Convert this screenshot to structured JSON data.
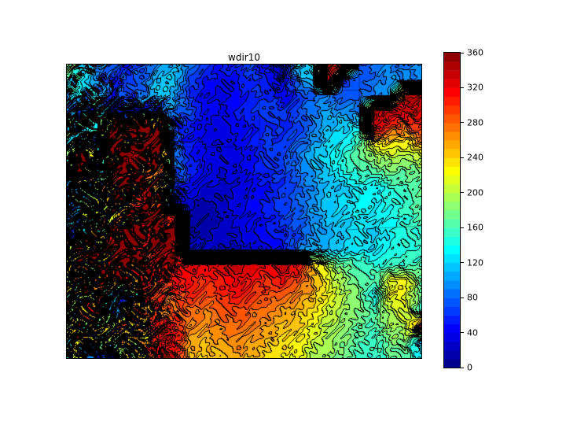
{
  "title": "wdir10",
  "colorbar": {
    "min": 0,
    "max": 360,
    "ticks": [
      0,
      40,
      80,
      120,
      160,
      200,
      240,
      280,
      320,
      360
    ],
    "n_bands": 36,
    "colormap": "jet"
  },
  "chart_data": {
    "type": "heatmap",
    "style": "filled-contour",
    "title": "wdir10",
    "variable": "wdir10",
    "units_range": [
      0,
      360
    ],
    "contour_interval": 10,
    "colormap": "jet",
    "legend_position": "right-colorbar",
    "grid_cols": 24,
    "grid_rows": 20,
    "grid": [
      [
        170,
        140,
        90,
        70,
        60,
        70,
        90,
        115,
        85,
        60,
        50,
        55,
        65,
        40,
        10,
        120,
        130,
        350,
        330,
        70,
        80,
        90,
        85,
        95
      ],
      [
        150,
        120,
        95,
        55,
        60,
        80,
        120,
        110,
        70,
        50,
        40,
        50,
        60,
        50,
        30,
        90,
        110,
        340,
        60,
        75,
        85,
        95,
        90,
        100
      ],
      [
        130,
        110,
        140,
        60,
        70,
        90,
        120,
        100,
        60,
        40,
        35,
        45,
        55,
        60,
        45,
        60,
        80,
        90,
        70,
        80,
        90,
        100,
        330,
        350
      ],
      [
        120,
        100,
        90,
        70,
        50,
        60,
        80,
        90,
        70,
        50,
        40,
        50,
        60,
        70,
        60,
        70,
        90,
        100,
        95,
        90,
        330,
        350,
        340,
        330
      ],
      [
        130,
        150,
        120,
        340,
        320,
        330,
        340,
        60,
        50,
        40,
        35,
        40,
        50,
        60,
        55,
        65,
        85,
        110,
        120,
        130,
        350,
        300,
        280,
        300
      ],
      [
        140,
        120,
        130,
        320,
        300,
        330,
        340,
        70,
        50,
        35,
        30,
        40,
        50,
        65,
        60,
        75,
        95,
        120,
        130,
        160,
        230,
        240,
        230,
        260
      ],
      [
        150,
        340,
        120,
        300,
        320,
        340,
        320,
        80,
        55,
        40,
        30,
        35,
        45,
        60,
        70,
        85,
        110,
        130,
        150,
        170,
        190,
        200,
        190,
        210
      ],
      [
        120,
        330,
        140,
        310,
        330,
        300,
        310,
        90,
        60,
        40,
        30,
        35,
        45,
        55,
        65,
        80,
        100,
        120,
        140,
        155,
        165,
        175,
        170,
        180
      ],
      [
        110,
        150,
        170,
        320,
        300,
        320,
        290,
        60,
        45,
        30,
        25,
        30,
        40,
        50,
        60,
        75,
        95,
        115,
        110,
        140,
        130,
        150,
        160,
        170
      ],
      [
        80,
        190,
        200,
        260,
        290,
        310,
        330,
        30,
        20,
        15,
        25,
        35,
        45,
        55,
        65,
        80,
        100,
        115,
        125,
        135,
        130,
        145,
        155,
        165
      ],
      [
        70,
        200,
        190,
        230,
        280,
        300,
        320,
        340,
        10,
        10,
        20,
        30,
        40,
        50,
        60,
        75,
        95,
        110,
        120,
        130,
        125,
        140,
        150,
        160
      ],
      [
        60,
        90,
        200,
        310,
        330,
        350,
        330,
        350,
        10,
        15,
        25,
        30,
        40,
        45,
        55,
        70,
        90,
        105,
        115,
        125,
        120,
        135,
        145,
        155
      ],
      [
        250,
        280,
        300,
        320,
        340,
        330,
        340,
        350,
        30,
        25,
        20,
        15,
        30,
        35,
        50,
        80,
        110,
        115,
        120,
        130,
        125,
        140,
        150,
        155
      ],
      [
        240,
        260,
        290,
        310,
        330,
        320,
        330,
        340,
        330,
        320,
        330,
        340,
        330,
        320,
        340,
        320,
        250,
        200,
        170,
        160,
        150,
        150,
        155,
        160
      ],
      [
        230,
        250,
        270,
        300,
        310,
        300,
        310,
        320,
        310,
        300,
        310,
        320,
        310,
        300,
        310,
        290,
        260,
        220,
        190,
        170,
        160,
        220,
        230,
        170
      ],
      [
        220,
        240,
        260,
        60,
        70,
        290,
        300,
        290,
        300,
        290,
        300,
        310,
        300,
        290,
        280,
        270,
        250,
        220,
        200,
        180,
        130,
        230,
        220,
        165
      ],
      [
        210,
        230,
        250,
        70,
        240,
        270,
        280,
        270,
        280,
        270,
        280,
        290,
        280,
        270,
        260,
        250,
        230,
        210,
        190,
        175,
        165,
        200,
        210,
        160
      ],
      [
        200,
        220,
        240,
        230,
        250,
        260,
        320,
        310,
        270,
        260,
        270,
        280,
        270,
        260,
        250,
        240,
        220,
        200,
        185,
        170,
        160,
        190,
        200,
        300
      ],
      [
        190,
        210,
        220,
        220,
        240,
        250,
        330,
        320,
        260,
        250,
        260,
        270,
        260,
        250,
        240,
        230,
        210,
        195,
        180,
        165,
        155,
        175,
        185,
        110
      ],
      [
        180,
        200,
        60,
        50,
        230,
        240,
        340,
        330,
        250,
        240,
        250,
        260,
        250,
        240,
        230,
        220,
        200,
        190,
        175,
        160,
        150,
        165,
        175,
        130
      ]
    ],
    "noise_amp": [
      [
        40,
        40,
        35,
        25,
        20,
        18,
        15,
        12,
        10,
        10,
        10,
        10,
        12,
        18,
        25,
        20,
        18,
        15,
        12,
        10,
        10,
        10,
        12,
        12
      ],
      [
        45,
        45,
        40,
        28,
        20,
        18,
        15,
        12,
        10,
        10,
        10,
        10,
        12,
        15,
        20,
        18,
        15,
        12,
        10,
        10,
        10,
        10,
        12,
        12
      ],
      [
        50,
        55,
        50,
        35,
        25,
        20,
        15,
        12,
        10,
        8,
        8,
        8,
        10,
        12,
        15,
        12,
        12,
        12,
        10,
        10,
        10,
        10,
        15,
        15
      ],
      [
        80,
        100,
        110,
        120,
        110,
        100,
        80,
        25,
        10,
        8,
        8,
        8,
        8,
        10,
        10,
        10,
        12,
        12,
        12,
        15,
        18,
        15,
        18,
        18
      ],
      [
        90,
        110,
        120,
        130,
        120,
        110,
        90,
        30,
        10,
        8,
        8,
        8,
        8,
        10,
        10,
        10,
        12,
        12,
        12,
        15,
        20,
        15,
        18,
        18
      ],
      [
        90,
        115,
        125,
        130,
        125,
        110,
        90,
        30,
        10,
        8,
        8,
        8,
        8,
        10,
        10,
        10,
        12,
        12,
        12,
        12,
        15,
        12,
        15,
        15
      ],
      [
        95,
        120,
        130,
        130,
        120,
        110,
        90,
        35,
        10,
        8,
        8,
        8,
        8,
        10,
        10,
        10,
        12,
        12,
        10,
        10,
        12,
        10,
        12,
        12
      ],
      [
        95,
        120,
        130,
        125,
        120,
        105,
        85,
        35,
        10,
        8,
        8,
        8,
        8,
        10,
        10,
        10,
        10,
        10,
        10,
        10,
        10,
        10,
        10,
        12
      ],
      [
        100,
        120,
        130,
        125,
        115,
        105,
        85,
        40,
        10,
        8,
        8,
        8,
        8,
        10,
        10,
        10,
        10,
        10,
        10,
        12,
        12,
        10,
        10,
        12
      ],
      [
        100,
        125,
        130,
        125,
        115,
        105,
        90,
        40,
        10,
        8,
        8,
        8,
        8,
        10,
        10,
        10,
        10,
        10,
        10,
        12,
        12,
        10,
        10,
        12
      ],
      [
        100,
        125,
        130,
        125,
        115,
        100,
        90,
        45,
        10,
        8,
        8,
        8,
        8,
        10,
        10,
        12,
        12,
        10,
        10,
        12,
        12,
        10,
        10,
        12
      ],
      [
        105,
        125,
        130,
        120,
        110,
        100,
        90,
        45,
        12,
        8,
        8,
        8,
        10,
        10,
        12,
        15,
        12,
        10,
        10,
        12,
        12,
        10,
        10,
        12
      ],
      [
        110,
        130,
        130,
        120,
        110,
        95,
        80,
        40,
        15,
        12,
        10,
        10,
        10,
        12,
        15,
        18,
        15,
        12,
        10,
        12,
        12,
        10,
        10,
        12
      ],
      [
        115,
        130,
        125,
        115,
        105,
        90,
        70,
        35,
        15,
        12,
        10,
        10,
        10,
        10,
        12,
        15,
        15,
        12,
        10,
        10,
        10,
        10,
        10,
        12
      ],
      [
        115,
        130,
        125,
        110,
        100,
        85,
        60,
        30,
        12,
        10,
        10,
        10,
        10,
        10,
        12,
        12,
        12,
        10,
        10,
        10,
        10,
        12,
        12,
        15
      ],
      [
        115,
        130,
        120,
        110,
        95,
        80,
        55,
        28,
        12,
        10,
        10,
        10,
        10,
        10,
        10,
        12,
        12,
        10,
        10,
        10,
        12,
        12,
        12,
        15
      ],
      [
        110,
        125,
        120,
        105,
        90,
        75,
        50,
        25,
        12,
        10,
        10,
        10,
        10,
        10,
        10,
        10,
        10,
        10,
        10,
        10,
        12,
        12,
        12,
        18
      ],
      [
        110,
        120,
        115,
        100,
        85,
        70,
        50,
        25,
        12,
        10,
        10,
        10,
        10,
        10,
        10,
        10,
        10,
        10,
        10,
        10,
        12,
        12,
        15,
        25
      ],
      [
        105,
        120,
        110,
        95,
        85,
        70,
        45,
        22,
        12,
        10,
        10,
        10,
        10,
        10,
        10,
        10,
        10,
        10,
        10,
        10,
        12,
        12,
        15,
        25
      ],
      [
        100,
        115,
        110,
        95,
        80,
        65,
        45,
        22,
        12,
        10,
        10,
        10,
        10,
        10,
        10,
        10,
        10,
        10,
        10,
        10,
        12,
        12,
        15,
        20
      ]
    ],
    "noise_params": {
      "a1": 0.22,
      "a2": 1.5,
      "a3": 0.13,
      "b1": 0.19,
      "b2": 1.5,
      "b3": 0.11,
      "w1": 0.6,
      "w2": 0.4
    },
    "boundaries": [
      [
        [
          0.543,
          0.0
        ],
        [
          0.543,
          0.281
        ]
      ],
      [
        [
          0.1,
          0.281
        ],
        [
          0.543,
          0.281
        ]
      ],
      [
        [
          0.825,
          0.0
        ],
        [
          0.825,
          0.464
        ]
      ],
      [
        [
          0.565,
          0.088
        ],
        [
          0.82,
          0.088
        ]
      ],
      [
        [
          0.79,
          0.563
        ],
        [
          1.0,
          0.55
        ]
      ],
      [
        [
          0.63,
          0.68
        ],
        [
          0.76,
          0.66
        ],
        [
          0.82,
          0.7
        ]
      ]
    ]
  }
}
